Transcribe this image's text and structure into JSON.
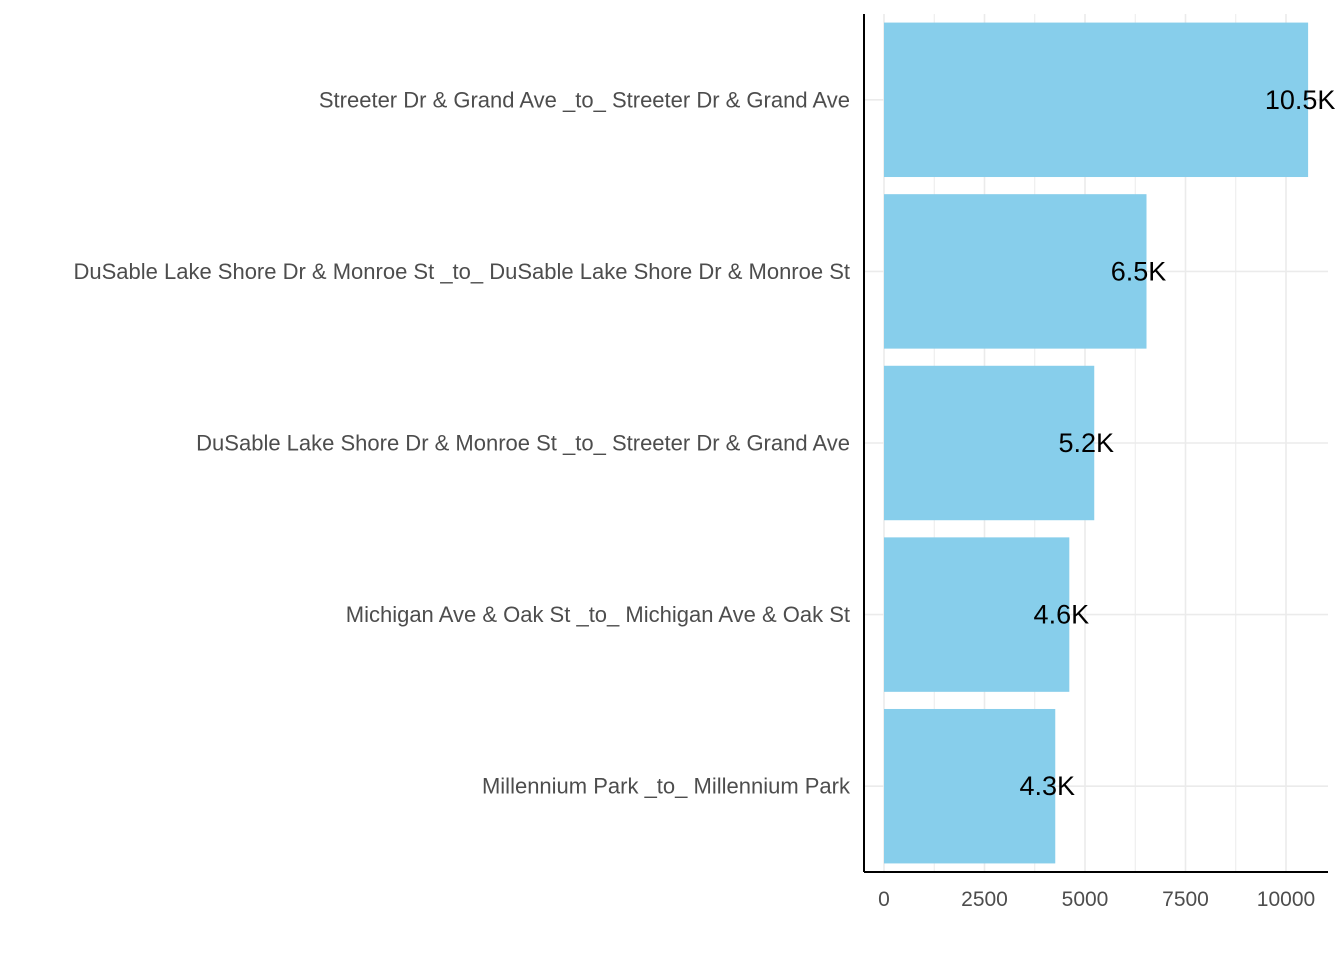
{
  "chart_data": {
    "type": "bar",
    "orientation": "horizontal",
    "title": "",
    "xlabel": "",
    "ylabel": "",
    "categories": [
      "Streeter Dr & Grand Ave _to_ Streeter Dr & Grand Ave",
      "DuSable Lake Shore Dr & Monroe St _to_ DuSable Lake Shore Dr & Monroe St",
      "DuSable Lake Shore Dr & Monroe St _to_ Streeter Dr & Grand Ave",
      "Michigan Ave & Oak St _to_ Michigan Ave & Oak St",
      "Millennium Park _to_ Millennium Park"
    ],
    "values": [
      10550,
      6530,
      5230,
      4610,
      4260
    ],
    "data_labels": [
      "10.5K",
      "6.5K",
      "5.2K",
      "4.6K",
      "4.3K"
    ],
    "xlim": [
      0,
      11050
    ],
    "x_ticks": [
      0,
      2500,
      5000,
      7500,
      10000
    ],
    "x_tick_labels": [
      "0",
      "2500",
      "5000",
      "7500",
      "10000"
    ],
    "grid": true,
    "legend": "none",
    "colors": {
      "bar": "#87ceeb",
      "grid": "#ebebeb",
      "axis": "#000000"
    }
  }
}
